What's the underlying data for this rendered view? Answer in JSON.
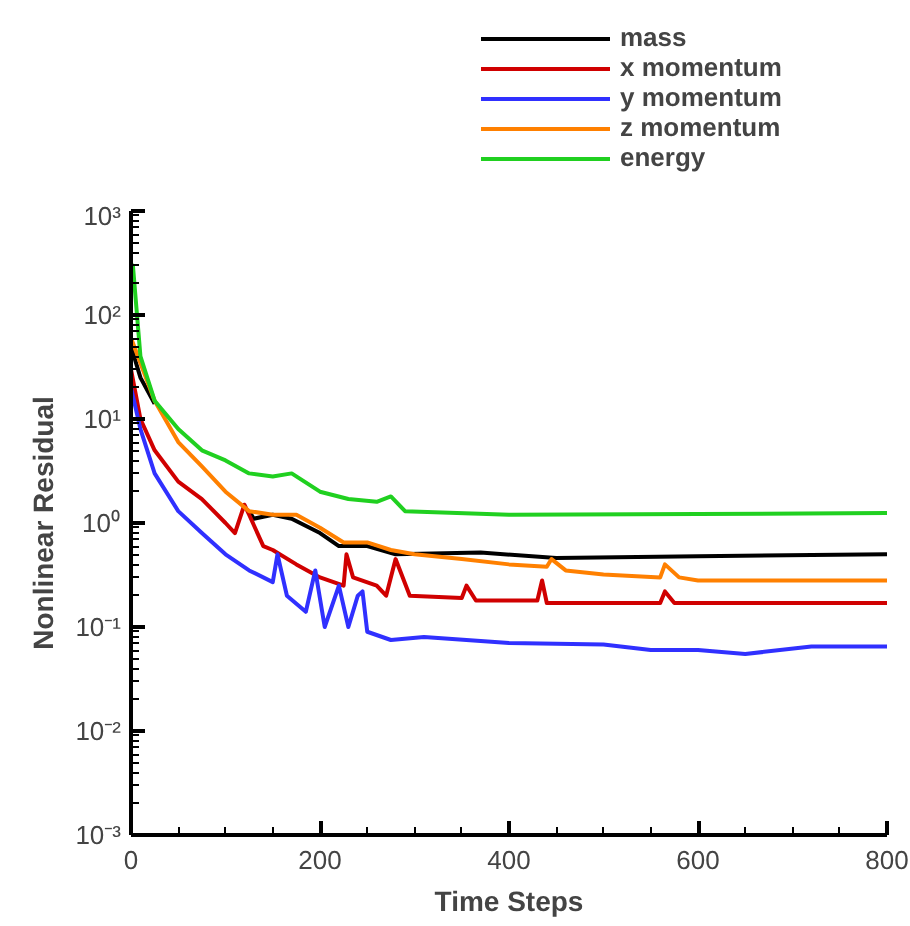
{
  "chart_data": {
    "type": "line",
    "xlabel": "Time Steps",
    "ylabel": "Nonlinear Residual",
    "log": "y",
    "grid": false,
    "legend": "top",
    "marker": "none",
    "line_style": "solid",
    "xlim": [
      0,
      800
    ],
    "xticks": [
      0,
      200,
      400,
      600,
      800
    ],
    "ylim": [
      0.001,
      1000
    ],
    "yticks": [
      {
        "value": 0.001,
        "label": "10⁻³"
      },
      {
        "value": 0.01,
        "label": "10⁻²"
      },
      {
        "value": 0.1,
        "label": "10⁻¹"
      },
      {
        "value": 1,
        "label": "10⁰"
      },
      {
        "value": 10,
        "label": "10¹"
      },
      {
        "value": 100,
        "label": "10²"
      },
      {
        "value": 1000,
        "label": "10³"
      }
    ],
    "series": [
      {
        "name": "mass",
        "color": "#000000",
        "x": [
          0,
          10,
          25,
          50,
          75,
          100,
          125,
          130,
          150,
          170,
          200,
          220,
          250,
          280,
          370,
          450,
          600,
          800
        ],
        "values": [
          50,
          25,
          14,
          null,
          null,
          null,
          1.3,
          1.1,
          1.2,
          1.1,
          0.8,
          0.6,
          0.6,
          0.5,
          0.52,
          0.46,
          0.48,
          0.5
        ]
      },
      {
        "name": "x momentum",
        "color": "#d00000",
        "x": [
          0,
          10,
          25,
          50,
          75,
          100,
          110,
          120,
          125,
          140,
          150,
          175,
          200,
          225,
          228,
          235,
          260,
          270,
          280,
          295,
          350,
          355,
          365,
          430,
          435,
          440,
          560,
          565,
          575,
          800
        ],
        "values": [
          30,
          10,
          5,
          2.5,
          1.7,
          1.0,
          0.8,
          1.5,
          1.2,
          0.6,
          0.55,
          0.4,
          0.3,
          0.25,
          0.5,
          0.3,
          0.25,
          0.2,
          0.45,
          0.2,
          0.19,
          0.25,
          0.18,
          0.18,
          0.28,
          0.17,
          0.17,
          0.22,
          0.17,
          0.17
        ]
      },
      {
        "name": "y momentum",
        "color": "#3030ff",
        "x": [
          0,
          10,
          25,
          50,
          75,
          100,
          125,
          150,
          155,
          165,
          185,
          195,
          205,
          220,
          230,
          240,
          245,
          250,
          275,
          310,
          400,
          500,
          550,
          600,
          650,
          720,
          800
        ],
        "values": [
          20,
          8,
          3,
          1.3,
          0.8,
          0.5,
          0.35,
          0.27,
          0.5,
          0.2,
          0.14,
          0.35,
          0.1,
          0.25,
          0.1,
          0.2,
          0.22,
          0.09,
          0.075,
          0.08,
          0.07,
          0.068,
          0.06,
          0.06,
          0.055,
          0.065,
          0.065
        ]
      },
      {
        "name": "z momentum",
        "color": "#ff8000",
        "x": [
          0,
          25,
          50,
          75,
          100,
          125,
          150,
          175,
          200,
          225,
          250,
          275,
          300,
          350,
          400,
          440,
          445,
          460,
          500,
          560,
          565,
          580,
          600,
          800
        ],
        "values": [
          60,
          15,
          6,
          3.5,
          2,
          1.3,
          1.2,
          1.2,
          0.9,
          0.65,
          0.65,
          0.55,
          0.5,
          0.45,
          0.4,
          0.38,
          0.45,
          0.35,
          0.32,
          0.3,
          0.4,
          0.3,
          0.28,
          0.28
        ]
      },
      {
        "name": "energy",
        "color": "#20d020",
        "x": [
          0,
          2,
          10,
          25,
          50,
          75,
          100,
          125,
          150,
          170,
          200,
          230,
          260,
          275,
          290,
          400,
          600,
          800
        ],
        "values": [
          200,
          300,
          40,
          15,
          8,
          5,
          4,
          3,
          2.8,
          3,
          2,
          1.7,
          1.6,
          1.8,
          1.3,
          1.2,
          1.22,
          1.25
        ]
      }
    ]
  }
}
